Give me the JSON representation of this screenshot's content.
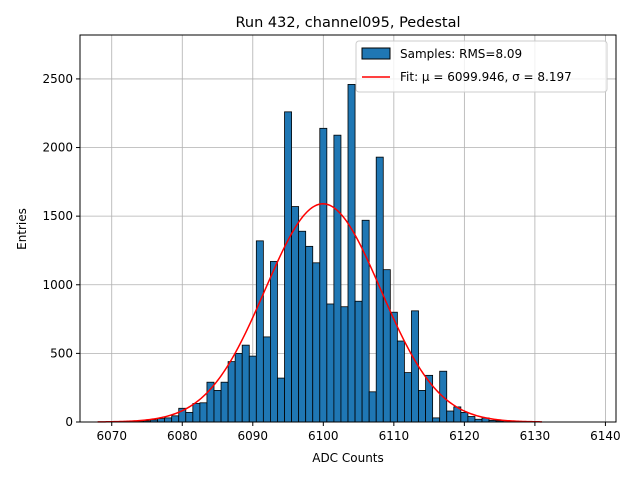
{
  "chart_data": {
    "type": "bar",
    "title": "Run 432, channel095, Pedestal",
    "xlabel": "ADC Counts",
    "ylabel": "Entries",
    "xlim": [
      6065.5,
      6141.5
    ],
    "ylim": [
      0,
      2820
    ],
    "xticks": [
      6070,
      6080,
      6090,
      6100,
      6110,
      6120,
      6130,
      6140
    ],
    "yticks": [
      0,
      500,
      1000,
      1500,
      2000,
      2500
    ],
    "grid": true,
    "legend_position": "top-right",
    "colors": {
      "bar": "#1f77b4",
      "fit": "#ff0000"
    },
    "histogram": {
      "name": "Samples: RMS=8.09",
      "bins": [
        6073,
        6074,
        6075,
        6076,
        6077,
        6078,
        6079,
        6080,
        6081,
        6082,
        6083,
        6084,
        6085,
        6086,
        6087,
        6088,
        6089,
        6090,
        6091,
        6092,
        6093,
        6094,
        6095,
        6096,
        6097,
        6098,
        6099,
        6100,
        6101,
        6102,
        6103,
        6104,
        6105,
        6106,
        6107,
        6108,
        6109,
        6110,
        6111,
        6112,
        6113,
        6114,
        6115,
        6116,
        6117,
        6118,
        6119,
        6120,
        6121,
        6122,
        6123,
        6124,
        6125,
        6126
      ],
      "counts": [
        2,
        4,
        8,
        15,
        25,
        30,
        45,
        100,
        70,
        135,
        140,
        290,
        230,
        290,
        440,
        500,
        560,
        480,
        1320,
        620,
        1170,
        320,
        2260,
        1570,
        1390,
        1280,
        1160,
        2140,
        860,
        2090,
        840,
        2460,
        880,
        1470,
        220,
        1930,
        1110,
        800,
        590,
        360,
        810,
        230,
        340,
        30,
        370,
        80,
        110,
        70,
        40,
        20,
        30,
        12,
        8,
        3
      ]
    },
    "fit": {
      "name": "Fit: μ = 6099.946, σ = 8.197",
      "mu": 6099.946,
      "sigma": 8.197,
      "amplitude": 1590,
      "x_range": [
        6068,
        6131
      ]
    }
  }
}
